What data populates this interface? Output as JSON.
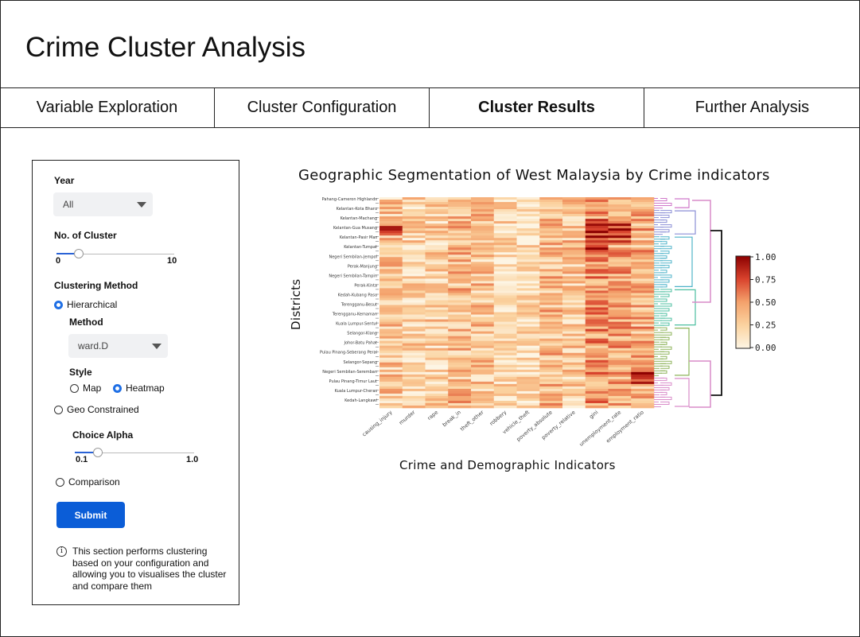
{
  "app": {
    "title": "Crime Cluster Analysis"
  },
  "tabs": [
    {
      "label": "Variable Exploration",
      "active": false
    },
    {
      "label": "Cluster Configuration",
      "active": false
    },
    {
      "label": "Cluster Results",
      "active": true
    },
    {
      "label": "Further Analysis",
      "active": false
    }
  ],
  "sidebar": {
    "year": {
      "label": "Year",
      "value": "All"
    },
    "clusters": {
      "label": "No. of Cluster",
      "min": "0",
      "max": "10",
      "value": 2
    },
    "clustering_method": {
      "label": "Clustering Method",
      "options": {
        "hierarchical": "Hierarchical",
        "geo": "Geo Constrained",
        "comparison": "Comparison"
      },
      "selected": "Hierarchical"
    },
    "method": {
      "label": "Method",
      "value": "ward.D"
    },
    "style": {
      "label": "Style",
      "options": {
        "map": "Map",
        "heatmap": "Heatmap"
      },
      "selected": "Heatmap"
    },
    "alpha": {
      "label": "Choice Alpha",
      "min": "0.1",
      "max": "1.0",
      "value": 0.2
    },
    "submit_label": "Submit",
    "info_text": "This section performs clustering based on your configuration and allowing you to visualises the cluster and compare them"
  },
  "chart_data": {
    "type": "heatmap",
    "title": "Geographic Segmentation of West Malaysia by Crime indicators",
    "xlabel": "Crime and Demographic Indicators",
    "ylabel": "Districts",
    "x": [
      "causing_injury",
      "murder",
      "rape",
      "break_in",
      "theft_other",
      "robbery",
      "vehicle_theft",
      "poverty_absolute",
      "poverty_relative",
      "gini",
      "unemployment_rate",
      "employment_ratio"
    ],
    "colorbar": {
      "ticks": [
        "1.00",
        "0.75",
        "0.50",
        "0.25",
        "0.00"
      ],
      "min": 0,
      "max": 1
    },
    "colors": {
      "low": "#fdf5e4",
      "mid": "#f4a26c",
      "high": "#8c0000"
    },
    "row_labels": [
      "Pahang-Cameron Highlands",
      "Kelantan-Kota Bharu",
      "Kelantan-Machang",
      "Kelantan-Gua Musang",
      "Kelantan-Pasir Mas",
      "Kelantan-Tumpat",
      "Negeri Sembilan-Jempol",
      "Perak-Manjung",
      "Negeri Sembilan-Tampin",
      "Perak-Kinta",
      "Kedah-Kubang Pasu",
      "Terengganu-Besut",
      "Terengganu-Kemaman",
      "Kuala Lumpur-Sentul",
      "Selangor-Klang",
      "Johor-Batu Pahat",
      "Pulau Pinang-Seberang Perai",
      "Selangor-Sepang",
      "Negeri Sembilan-Seremban",
      "Pulau Pinang-Timur Laut",
      "Kuala Lumpur-Cheras",
      "Kedah-Langkawi"
    ]
  }
}
